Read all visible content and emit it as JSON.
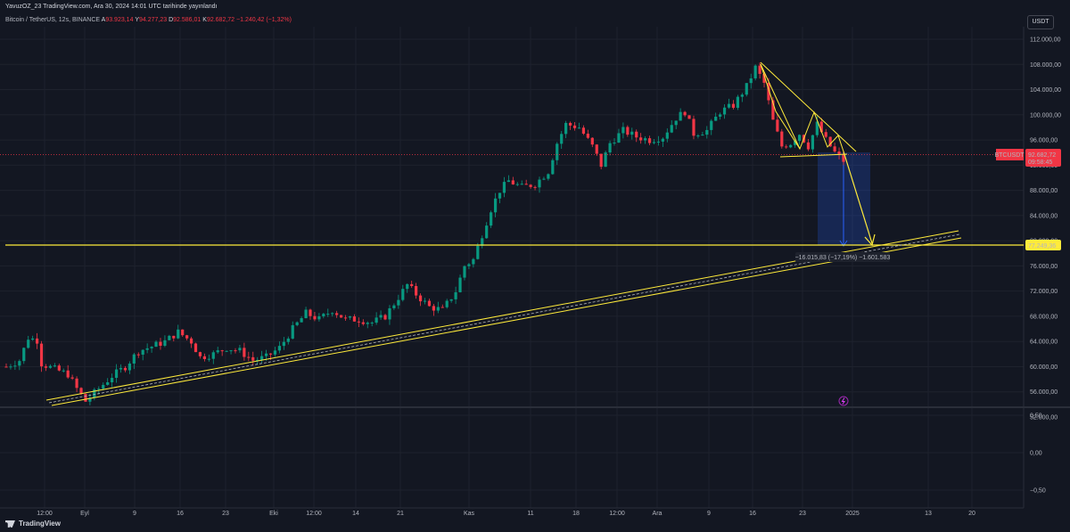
{
  "header": {
    "publish_line": "YavuzOZ_23 TradingView.com, Ara 30, 2024 14:01 UTC tarihinde yayınlandı",
    "symbol": "Bitcoin / TetherUS, 12s, BINANCE",
    "open_label": "A",
    "open": "93.923,14",
    "high_label": "Y",
    "high": "94.277,23",
    "low_label": "D",
    "low": "92.586,01",
    "close_label": "K",
    "close": "92.682,72",
    "change": "−1.240,42 (−1,32%)"
  },
  "currency": "USDT",
  "price_badge": {
    "ticker": "BTCUSDT",
    "price": "92.682,72",
    "countdown": "09:58:45",
    "color": "#f23645"
  },
  "level_badge": {
    "price": "77.249,36",
    "color": "#ffeb3b"
  },
  "measure_label": "−16.015,83 (−17,19%) −1.601.583",
  "branding": "TradingView",
  "colors": {
    "up": "#089981",
    "down": "#f23645",
    "drawing": "#ffeb3b",
    "measure": "#2962ff"
  },
  "chart_data": {
    "type": "candlestick",
    "symbol": "BTCUSDT",
    "price_axis": {
      "ticks": [
        "112.000,00",
        "108.000,00",
        "104.000,00",
        "100.000,00",
        "96.000,00",
        "92.000,00",
        "88.000,00",
        "84.000,00",
        "80.000,00",
        "76.000,00",
        "72.000,00",
        "68.000,00",
        "64.000,00",
        "60.000,00",
        "56.000,00",
        "52.000,00"
      ],
      "ylim": [
        50500,
        114000
      ]
    },
    "oscillator_axis": {
      "ticks": [
        "0,50",
        "0,00",
        "−0,50"
      ]
    },
    "time_axis": {
      "ticks": [
        "12:00",
        "Eyl",
        "9",
        "16",
        "23",
        "Eki",
        "12:00",
        "14",
        "21",
        "Kas",
        "11",
        "18",
        "12:00",
        "Ara",
        "9",
        "16",
        "23",
        "2025",
        "13",
        "20"
      ]
    },
    "close_path": [
      {
        "x": 0,
        "y": 60000
      },
      {
        "x": 3,
        "y": 61000
      },
      {
        "x": 5,
        "y": 64600
      },
      {
        "x": 7,
        "y": 64200
      },
      {
        "x": 8,
        "y": 60500
      },
      {
        "x": 11,
        "y": 59600
      },
      {
        "x": 14,
        "y": 58800
      },
      {
        "x": 16,
        "y": 56500
      },
      {
        "x": 18,
        "y": 54500
      },
      {
        "x": 21,
        "y": 56500
      },
      {
        "x": 24,
        "y": 58500
      },
      {
        "x": 27,
        "y": 60000
      },
      {
        "x": 30,
        "y": 62500
      },
      {
        "x": 33,
        "y": 63200
      },
      {
        "x": 36,
        "y": 64000
      },
      {
        "x": 39,
        "y": 65500
      },
      {
        "x": 42,
        "y": 64000
      },
      {
        "x": 44,
        "y": 61500
      },
      {
        "x": 47,
        "y": 62000
      },
      {
        "x": 50,
        "y": 63000
      },
      {
        "x": 53,
        "y": 62500
      },
      {
        "x": 56,
        "y": 61000
      },
      {
        "x": 59,
        "y": 61500
      },
      {
        "x": 62,
        "y": 63000
      },
      {
        "x": 65,
        "y": 66000
      },
      {
        "x": 68,
        "y": 68500
      },
      {
        "x": 71,
        "y": 67500
      },
      {
        "x": 74,
        "y": 69000
      },
      {
        "x": 77,
        "y": 67500
      },
      {
        "x": 80,
        "y": 67500
      },
      {
        "x": 83,
        "y": 67000
      },
      {
        "x": 86,
        "y": 68000
      },
      {
        "x": 89,
        "y": 71000
      },
      {
        "x": 91,
        "y": 73000
      },
      {
        "x": 93,
        "y": 71500
      },
      {
        "x": 96,
        "y": 69500
      },
      {
        "x": 99,
        "y": 69000
      },
      {
        "x": 102,
        "y": 72000
      },
      {
        "x": 104,
        "y": 76000
      },
      {
        "x": 106,
        "y": 77000
      },
      {
        "x": 108,
        "y": 81000
      },
      {
        "x": 110,
        "y": 85000
      },
      {
        "x": 112,
        "y": 88000
      },
      {
        "x": 114,
        "y": 89500
      },
      {
        "x": 117,
        "y": 88500
      },
      {
        "x": 120,
        "y": 89000
      },
      {
        "x": 123,
        "y": 91000
      },
      {
        "x": 125,
        "y": 95500
      },
      {
        "x": 127,
        "y": 98500
      },
      {
        "x": 130,
        "y": 98000
      },
      {
        "x": 133,
        "y": 95000
      },
      {
        "x": 135,
        "y": 92000
      },
      {
        "x": 137,
        "y": 95500
      },
      {
        "x": 140,
        "y": 97500
      },
      {
        "x": 143,
        "y": 96500
      },
      {
        "x": 146,
        "y": 96000
      },
      {
        "x": 149,
        "y": 96500
      },
      {
        "x": 152,
        "y": 99500
      },
      {
        "x": 154,
        "y": 100500
      },
      {
        "x": 156,
        "y": 97000
      },
      {
        "x": 159,
        "y": 97500
      },
      {
        "x": 162,
        "y": 100500
      },
      {
        "x": 165,
        "y": 101500
      },
      {
        "x": 168,
        "y": 104500
      },
      {
        "x": 170,
        "y": 107500
      },
      {
        "x": 172,
        "y": 105000
      },
      {
        "x": 174,
        "y": 99000
      },
      {
        "x": 176,
        "y": 95000
      },
      {
        "x": 178,
        "y": 95500
      },
      {
        "x": 180,
        "y": 97000
      },
      {
        "x": 182,
        "y": 95000
      },
      {
        "x": 184,
        "y": 98500
      },
      {
        "x": 186,
        "y": 96000
      },
      {
        "x": 188,
        "y": 94000
      },
      {
        "x": 190,
        "y": 92700
      }
    ],
    "horizontal_level": 77249.36,
    "current_price": 92682.72
  }
}
